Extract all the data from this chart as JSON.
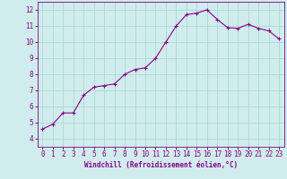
{
  "x": [
    0,
    1,
    2,
    3,
    4,
    5,
    6,
    7,
    8,
    9,
    10,
    11,
    12,
    13,
    14,
    15,
    16,
    17,
    18,
    19,
    20,
    21,
    22,
    23
  ],
  "y": [
    4.6,
    4.9,
    5.6,
    5.6,
    6.7,
    7.2,
    7.3,
    7.4,
    8.0,
    8.3,
    8.4,
    9.0,
    10.0,
    11.0,
    11.7,
    11.8,
    12.0,
    11.4,
    10.9,
    10.85,
    11.1,
    10.85,
    10.7,
    10.2
  ],
  "line_color": "#880088",
  "marker": "+",
  "marker_size": 3,
  "line_width": 0.8,
  "xlabel": "Windchill (Refroidissement éolien,°C)",
  "xlabel_fontsize": 5.5,
  "ylabel": "",
  "xlim": [
    -0.5,
    23.5
  ],
  "ylim": [
    3.5,
    12.5
  ],
  "yticks": [
    4,
    5,
    6,
    7,
    8,
    9,
    10,
    11,
    12
  ],
  "xtick_labels": [
    "0",
    "1",
    "2",
    "3",
    "4",
    "5",
    "6",
    "7",
    "8",
    "9",
    "10",
    "11",
    "12",
    "13",
    "14",
    "15",
    "16",
    "17",
    "18",
    "19",
    "20",
    "21",
    "22",
    "23"
  ],
  "grid_color": "#aad8d8",
  "background_color": "#d0ecec",
  "tick_label_color": "#880088",
  "tick_label_fontsize": 5.5,
  "spine_color": "#880088"
}
